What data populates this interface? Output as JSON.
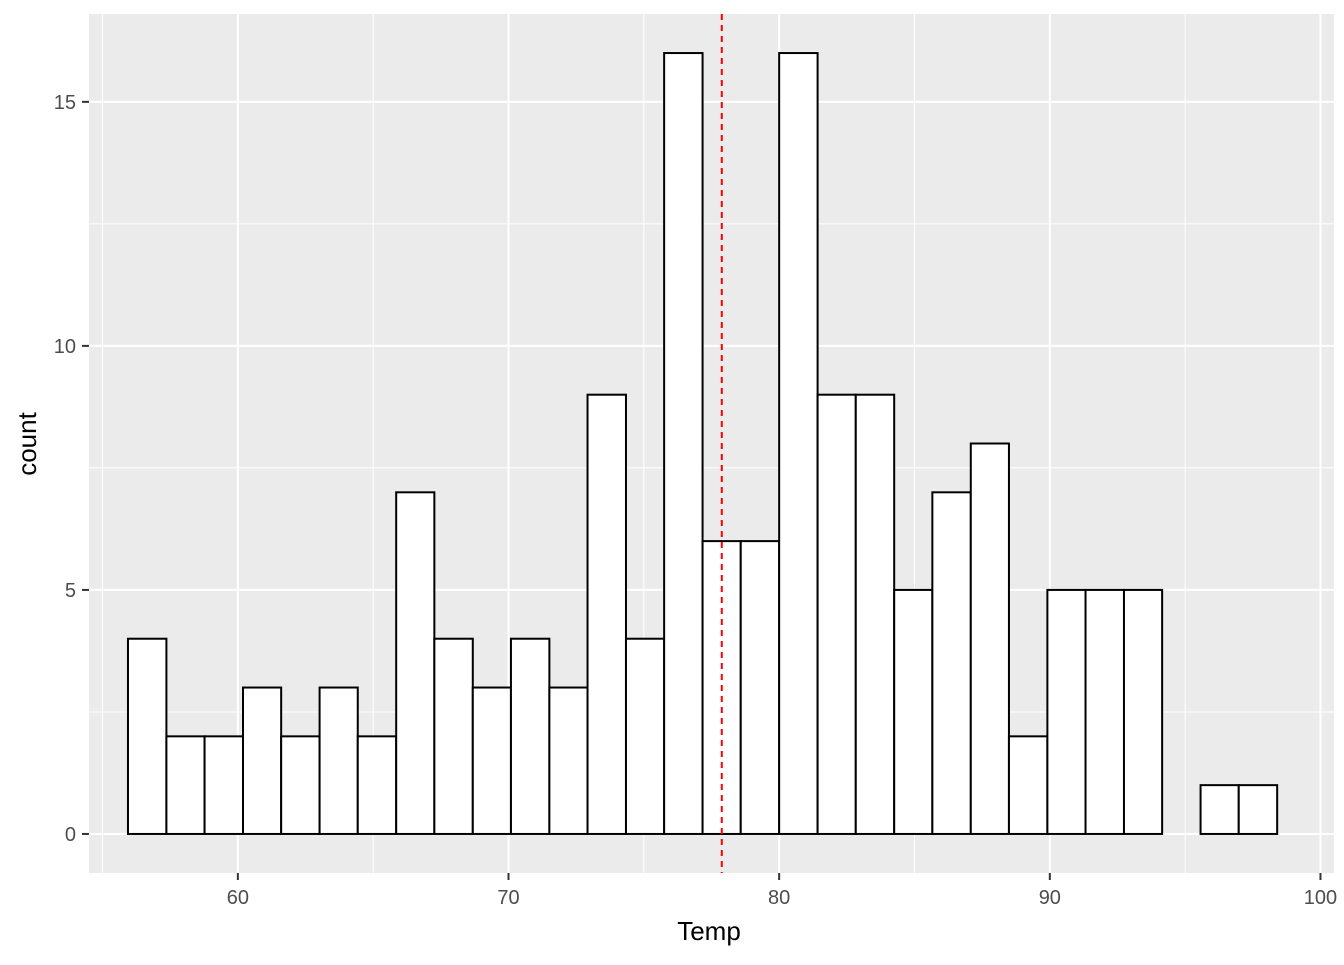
{
  "chart_data": {
    "type": "bar",
    "subtype": "histogram",
    "xlabel": "Temp",
    "ylabel": "count",
    "xlim": [
      54.5,
      100.5
    ],
    "ylim": [
      -0.8,
      16.8
    ],
    "x_ticks": [
      60,
      70,
      80,
      90,
      100
    ],
    "y_ticks": [
      0,
      5,
      10,
      15
    ],
    "bins": [
      {
        "x0": 55.94,
        "x1": 57.36,
        "count": 4
      },
      {
        "x0": 57.36,
        "x1": 58.77,
        "count": 2
      },
      {
        "x0": 58.77,
        "x1": 60.19,
        "count": 2
      },
      {
        "x0": 60.19,
        "x1": 61.6,
        "count": 3
      },
      {
        "x0": 61.6,
        "x1": 63.02,
        "count": 2
      },
      {
        "x0": 63.02,
        "x1": 64.43,
        "count": 3
      },
      {
        "x0": 64.43,
        "x1": 65.85,
        "count": 2
      },
      {
        "x0": 65.85,
        "x1": 67.26,
        "count": 7
      },
      {
        "x0": 67.26,
        "x1": 68.68,
        "count": 4
      },
      {
        "x0": 68.68,
        "x1": 70.09,
        "count": 3
      },
      {
        "x0": 70.09,
        "x1": 71.51,
        "count": 4
      },
      {
        "x0": 71.51,
        "x1": 72.92,
        "count": 3
      },
      {
        "x0": 72.92,
        "x1": 74.34,
        "count": 9
      },
      {
        "x0": 74.34,
        "x1": 75.75,
        "count": 4
      },
      {
        "x0": 75.75,
        "x1": 77.17,
        "count": 16
      },
      {
        "x0": 77.17,
        "x1": 78.58,
        "count": 6
      },
      {
        "x0": 78.58,
        "x1": 80.0,
        "count": 6
      },
      {
        "x0": 80.0,
        "x1": 81.42,
        "count": 16
      },
      {
        "x0": 81.42,
        "x1": 82.83,
        "count": 9
      },
      {
        "x0": 82.83,
        "x1": 84.25,
        "count": 9
      },
      {
        "x0": 84.25,
        "x1": 85.66,
        "count": 5
      },
      {
        "x0": 85.66,
        "x1": 87.08,
        "count": 7
      },
      {
        "x0": 87.08,
        "x1": 88.49,
        "count": 8
      },
      {
        "x0": 88.49,
        "x1": 89.91,
        "count": 2
      },
      {
        "x0": 89.91,
        "x1": 91.32,
        "count": 5
      },
      {
        "x0": 91.32,
        "x1": 92.74,
        "count": 5
      },
      {
        "x0": 92.74,
        "x1": 94.15,
        "count": 5
      },
      {
        "x0": 94.15,
        "x1": 95.57,
        "count": 0
      },
      {
        "x0": 95.57,
        "x1": 96.98,
        "count": 1
      },
      {
        "x0": 96.98,
        "x1": 98.4,
        "count": 1
      }
    ],
    "mean_line": {
      "x": 77.88,
      "color": "#ff0000",
      "style": "dashed"
    },
    "bar_fill": "#ffffff",
    "bar_stroke": "#000000",
    "panel_background": "#ebebeb",
    "grid": true,
    "legend": "none"
  }
}
